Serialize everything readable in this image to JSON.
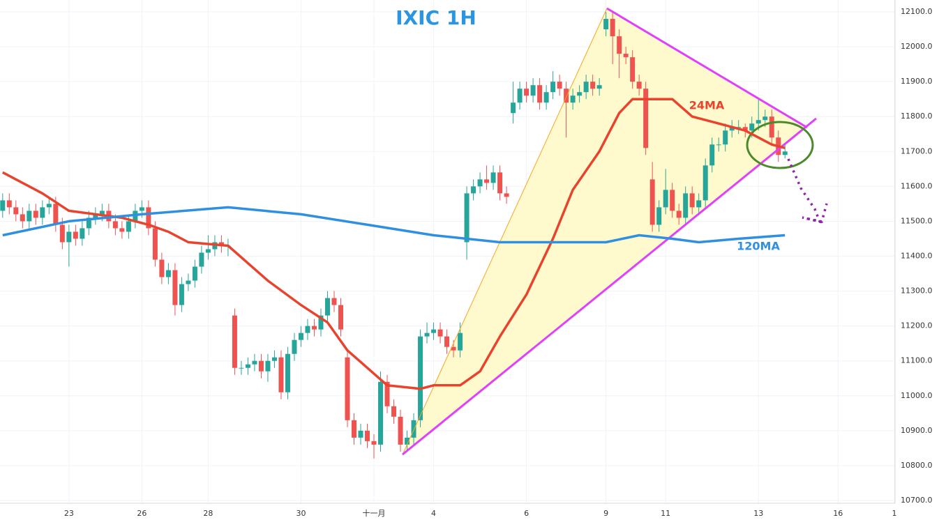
{
  "chart_data": {
    "type": "candlestick",
    "title": "IXIC 1H",
    "up_color": "#26a69a",
    "down_color": "#ef5350",
    "candles": [
      [
        11530,
        11580,
        11510,
        11560
      ],
      [
        11560,
        11580,
        11520,
        11540
      ],
      [
        11540,
        11560,
        11500,
        11520
      ],
      [
        11520,
        11540,
        11480,
        11500
      ],
      [
        11500,
        11550,
        11480,
        11530
      ],
      [
        11530,
        11550,
        11490,
        11510
      ],
      [
        11510,
        11560,
        11490,
        11540
      ],
      [
        11540,
        11570,
        11520,
        11550
      ],
      [
        11550,
        11570,
        11470,
        11490
      ],
      [
        11490,
        11510,
        11420,
        11440
      ],
      [
        11440,
        11490,
        11370,
        11470
      ],
      [
        11470,
        11490,
        11430,
        11450
      ],
      [
        11450,
        11500,
        11430,
        11480
      ],
      [
        11480,
        11530,
        11460,
        11510
      ],
      [
        11510,
        11540,
        11490,
        11520
      ],
      [
        11520,
        11550,
        11500,
        11530
      ],
      [
        11530,
        11550,
        11480,
        11500
      ],
      [
        11500,
        11520,
        11460,
        11480
      ],
      [
        11480,
        11500,
        11450,
        11470
      ],
      [
        11470,
        11520,
        11450,
        11500
      ],
      [
        11500,
        11550,
        11480,
        11530
      ],
      [
        11530,
        11560,
        11510,
        11540
      ],
      [
        11540,
        11560,
        11460,
        11480
      ],
      [
        11480,
        11500,
        11370,
        11390
      ],
      [
        11390,
        11410,
        11320,
        11340
      ],
      [
        11340,
        11380,
        11320,
        11360
      ],
      [
        11360,
        11380,
        11230,
        11260
      ],
      [
        11260,
        11340,
        11240,
        11320
      ],
      [
        11320,
        11350,
        11300,
        11330
      ],
      [
        11330,
        11390,
        11310,
        11370
      ],
      [
        11370,
        11430,
        11350,
        11410
      ],
      [
        11410,
        11460,
        11390,
        11420
      ],
      [
        11420,
        11460,
        11400,
        11440
      ],
      [
        11440,
        11460,
        11410,
        11430
      ],
      [
        11430,
        11450,
        11400,
        11430
      ],
      [
        11230,
        11250,
        11060,
        11080
      ],
      [
        11080,
        11100,
        11060,
        11080
      ],
      [
        11080,
        11110,
        11060,
        11090
      ],
      [
        11090,
        11120,
        11070,
        11100
      ],
      [
        11100,
        11120,
        11050,
        11070
      ],
      [
        11070,
        11120,
        11040,
        11100
      ],
      [
        11100,
        11130,
        11080,
        11110
      ],
      [
        11110,
        11130,
        10990,
        11010
      ],
      [
        11010,
        11140,
        10990,
        11120
      ],
      [
        11120,
        11180,
        11100,
        11160
      ],
      [
        11160,
        11200,
        11140,
        11180
      ],
      [
        11180,
        11220,
        11160,
        11200
      ],
      [
        11200,
        11220,
        11170,
        11190
      ],
      [
        11190,
        11250,
        11170,
        11230
      ],
      [
        11230,
        11300,
        11210,
        11280
      ],
      [
        11280,
        11300,
        11240,
        11260
      ],
      [
        11260,
        11280,
        11170,
        11190
      ],
      [
        11110,
        11130,
        10910,
        10930
      ],
      [
        10930,
        10950,
        10860,
        10880
      ],
      [
        10880,
        10920,
        10860,
        10900
      ],
      [
        10900,
        10920,
        10850,
        10870
      ],
      [
        10870,
        10890,
        10820,
        10860
      ],
      [
        10860,
        11070,
        10840,
        11040
      ],
      [
        11040,
        11060,
        10950,
        10970
      ],
      [
        10970,
        10990,
        10920,
        10940
      ],
      [
        10940,
        10960,
        10840,
        10860
      ],
      [
        10860,
        10900,
        10840,
        10880
      ],
      [
        10880,
        10950,
        10860,
        10930
      ],
      [
        10930,
        11190,
        10910,
        11170
      ],
      [
        11170,
        11210,
        11150,
        11180
      ],
      [
        11180,
        11210,
        11160,
        11190
      ],
      [
        11190,
        11210,
        11150,
        11170
      ],
      [
        11170,
        11190,
        11120,
        11140
      ],
      [
        11140,
        11160,
        11110,
        11130
      ],
      [
        11130,
        11210,
        11110,
        11180
      ],
      [
        11440,
        11600,
        11390,
        11580
      ],
      [
        11580,
        11620,
        11560,
        11600
      ],
      [
        11600,
        11640,
        11580,
        11620
      ],
      [
        11620,
        11660,
        11590,
        11610
      ],
      [
        11610,
        11660,
        11590,
        11640
      ],
      [
        11640,
        11660,
        11560,
        11580
      ],
      [
        11580,
        11600,
        11550,
        11570
      ],
      [
        11810,
        11900,
        11780,
        11840
      ],
      [
        11840,
        11900,
        11820,
        11880
      ],
      [
        11880,
        11900,
        11840,
        11860
      ],
      [
        11860,
        11910,
        11840,
        11890
      ],
      [
        11890,
        11910,
        11820,
        11840
      ],
      [
        11840,
        11890,
        11820,
        11870
      ],
      [
        11870,
        11930,
        11850,
        11900
      ],
      [
        11900,
        11920,
        11860,
        11880
      ],
      [
        11880,
        11900,
        11740,
        11840
      ],
      [
        11840,
        11880,
        11820,
        11860
      ],
      [
        11860,
        11890,
        11840,
        11870
      ],
      [
        11870,
        11920,
        11850,
        11900
      ],
      [
        11900,
        11920,
        11860,
        11880
      ],
      [
        11880,
        11910,
        11860,
        11890
      ],
      [
        12050,
        12100,
        12030,
        12080
      ],
      [
        12080,
        12100,
        11950,
        12030
      ],
      [
        12030,
        12050,
        11910,
        11980
      ],
      [
        11980,
        12000,
        11950,
        11970
      ],
      [
        11970,
        11990,
        11880,
        11900
      ],
      [
        11900,
        11920,
        11860,
        11880
      ],
      [
        11880,
        11900,
        11690,
        11710
      ],
      [
        11620,
        11670,
        11470,
        11490
      ],
      [
        11490,
        11560,
        11470,
        11540
      ],
      [
        11540,
        11650,
        11520,
        11590
      ],
      [
        11590,
        11610,
        11510,
        11530
      ],
      [
        11530,
        11550,
        11490,
        11510
      ],
      [
        11510,
        11600,
        11490,
        11580
      ],
      [
        11580,
        11600,
        11520,
        11540
      ],
      [
        11540,
        11580,
        11520,
        11560
      ],
      [
        11560,
        11680,
        11540,
        11660
      ],
      [
        11660,
        11740,
        11640,
        11720
      ],
      [
        11720,
        11740,
        11700,
        11720
      ],
      [
        11720,
        11780,
        11700,
        11760
      ],
      [
        11760,
        11790,
        11740,
        11770
      ],
      [
        11770,
        11790,
        11750,
        11770
      ],
      [
        11770,
        11780,
        11740,
        11760
      ],
      [
        11760,
        11800,
        11740,
        11780
      ],
      [
        11780,
        11850,
        11760,
        11790
      ],
      [
        11790,
        11820,
        11770,
        11800
      ],
      [
        11800,
        11820,
        11720,
        11740
      ],
      [
        11740,
        11760,
        11670,
        11690
      ],
      [
        11690,
        11720,
        11680,
        11700
      ]
    ],
    "lines": [
      {
        "name": "24MA",
        "color": "#e8432d",
        "x": [
          0,
          6,
          10,
          18,
          22,
          25,
          28,
          34,
          40,
          45,
          49,
          52,
          55,
          58,
          63,
          65,
          69,
          72,
          75,
          79,
          83,
          86,
          90,
          93,
          95,
          98,
          101,
          104,
          108,
          112,
          116,
          118
        ],
        "values": [
          11640,
          11580,
          11530,
          11510,
          11490,
          11470,
          11440,
          11430,
          11330,
          11260,
          11210,
          11130,
          11080,
          11030,
          11020,
          11030,
          11030,
          11070,
          11170,
          11290,
          11450,
          11590,
          11700,
          11810,
          11850,
          11850,
          11850,
          11800,
          11780,
          11760,
          11720,
          11710
        ]
      },
      {
        "name": "120MA",
        "color": "#2f8fe0",
        "x": [
          0,
          10,
          21,
          34,
          45,
          55,
          65,
          75,
          84,
          91,
          96,
          101,
          105,
          111,
          118
        ],
        "values": [
          11460,
          11500,
          11520,
          11540,
          11520,
          11490,
          11460,
          11440,
          11440,
          11440,
          11460,
          11450,
          11440,
          11450,
          11460
        ]
      }
    ],
    "xlim": [
      -0.4,
      134.6
    ],
    "xticks": [
      {
        "value": 10,
        "label": "23"
      },
      {
        "value": 21,
        "label": "26"
      },
      {
        "value": 31,
        "label": "28"
      },
      {
        "value": 45,
        "label": "30"
      },
      {
        "value": 56,
        "label": "十一月"
      },
      {
        "value": 65,
        "label": "4"
      },
      {
        "value": 79,
        "label": "6"
      },
      {
        "value": 91,
        "label": "9"
      },
      {
        "value": 100,
        "label": "11"
      },
      {
        "value": 114,
        "label": "13"
      },
      {
        "value": 126,
        "label": "16"
      },
      {
        "value": 134.5,
        "label": "1"
      }
    ],
    "ylim": [
      10692,
      12134
    ],
    "yticks": [
      {
        "value": 10700,
        "label": "10700.0"
      },
      {
        "value": 10800,
        "label": "10800.0"
      },
      {
        "value": 10900,
        "label": "10900.0"
      },
      {
        "value": 11000,
        "label": "11000.0"
      },
      {
        "value": 11100,
        "label": "11100.0"
      },
      {
        "value": 11200,
        "label": "11200.0"
      },
      {
        "value": 11300,
        "label": "11300.0"
      },
      {
        "value": 11400,
        "label": "11400.0"
      },
      {
        "value": 11500,
        "label": "11500.0"
      },
      {
        "value": 11600,
        "label": "11600.0"
      },
      {
        "value": 11700,
        "label": "11700.0"
      },
      {
        "value": 11800,
        "label": "11800.0"
      },
      {
        "value": 11900,
        "label": "11900.0"
      },
      {
        "value": 12000,
        "label": "12000.0"
      },
      {
        "value": 12100,
        "label": "12100.0"
      }
    ],
    "grid": true
  }
}
